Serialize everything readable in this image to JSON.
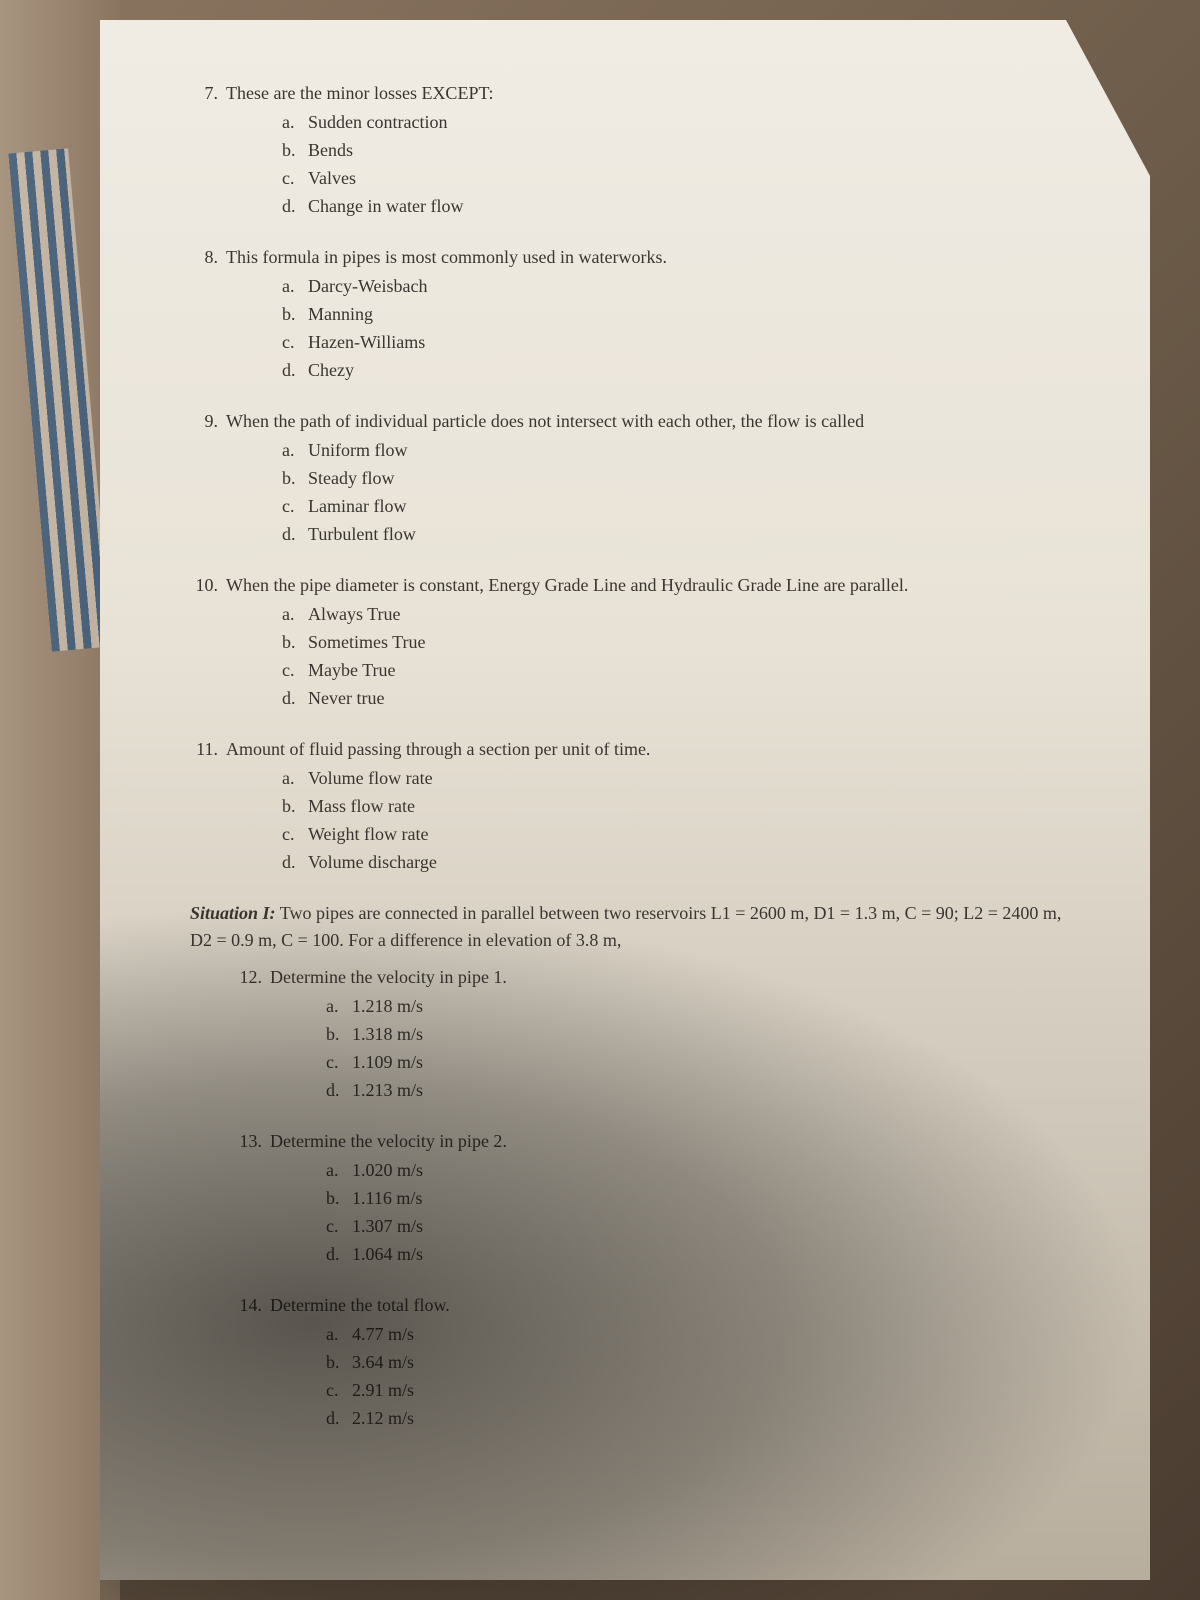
{
  "page": {
    "background_colors": {
      "table": "#8a7560",
      "paper": "#f0ece4",
      "stripe_blue": "#2a5580",
      "stripe_cream": "#d4c8b8"
    },
    "text_color": "#3a3530",
    "font_family": "Times New Roman, serif",
    "base_fontsize": 18
  },
  "questions": [
    {
      "num": "7.",
      "stem": "These are the minor losses EXCEPT:",
      "options": [
        {
          "l": "a.",
          "t": "Sudden contraction"
        },
        {
          "l": "b.",
          "t": "Bends"
        },
        {
          "l": "c.",
          "t": "Valves"
        },
        {
          "l": "d.",
          "t": "Change in water flow"
        }
      ]
    },
    {
      "num": "8.",
      "stem": "This formula in pipes is most commonly used in waterworks.",
      "options": [
        {
          "l": "a.",
          "t": "Darcy-Weisbach"
        },
        {
          "l": "b.",
          "t": "Manning"
        },
        {
          "l": "c.",
          "t": "Hazen-Williams"
        },
        {
          "l": "d.",
          "t": "Chezy"
        }
      ]
    },
    {
      "num": "9.",
      "stem": "When the path of individual particle does not intersect with each other, the flow is called",
      "options": [
        {
          "l": "a.",
          "t": "Uniform flow"
        },
        {
          "l": "b.",
          "t": "Steady flow"
        },
        {
          "l": "c.",
          "t": "Laminar flow"
        },
        {
          "l": "d.",
          "t": "Turbulent flow"
        }
      ]
    },
    {
      "num": "10.",
      "stem": "When the pipe diameter is constant, Energy Grade Line and Hydraulic Grade Line are parallel.",
      "options": [
        {
          "l": "a.",
          "t": "Always True"
        },
        {
          "l": "b.",
          "t": "Sometimes True"
        },
        {
          "l": "c.",
          "t": "Maybe True"
        },
        {
          "l": "d.",
          "t": "Never true"
        }
      ]
    },
    {
      "num": "11.",
      "stem": "Amount of fluid passing through a section per unit of time.",
      "options": [
        {
          "l": "a.",
          "t": "Volume flow rate"
        },
        {
          "l": "b.",
          "t": "Mass flow rate"
        },
        {
          "l": "c.",
          "t": "Weight flow rate"
        },
        {
          "l": "d.",
          "t": "Volume discharge"
        }
      ]
    }
  ],
  "situation": {
    "label": "Situation I:",
    "text": " Two pipes are connected in parallel between two reservoirs L1 = 2600 m, D1 = 1.3 m, C = 90; L2 = 2400 m, D2 = 0.9 m, C = 100. For a difference in elevation of 3.8 m,"
  },
  "sub_questions": [
    {
      "num": "12.",
      "stem": "Determine the velocity in pipe 1.",
      "options": [
        {
          "l": "a.",
          "t": "1.218 m/s"
        },
        {
          "l": "b.",
          "t": "1.318 m/s"
        },
        {
          "l": "c.",
          "t": "1.109 m/s"
        },
        {
          "l": "d.",
          "t": "1.213 m/s"
        }
      ]
    },
    {
      "num": "13.",
      "stem": "Determine the velocity in pipe 2.",
      "options": [
        {
          "l": "a.",
          "t": "1.020 m/s"
        },
        {
          "l": "b.",
          "t": "1.116 m/s"
        },
        {
          "l": "c.",
          "t": "1.307 m/s"
        },
        {
          "l": "d.",
          "t": "1.064 m/s"
        }
      ]
    },
    {
      "num": "14.",
      "stem": "Determine the total flow.",
      "options": [
        {
          "l": "a.",
          "t": "4.77 m/s"
        },
        {
          "l": "b.",
          "t": "3.64 m/s"
        },
        {
          "l": "c.",
          "t": "2.91 m/s"
        },
        {
          "l": "d.",
          "t": "2.12 m/s"
        }
      ]
    }
  ]
}
